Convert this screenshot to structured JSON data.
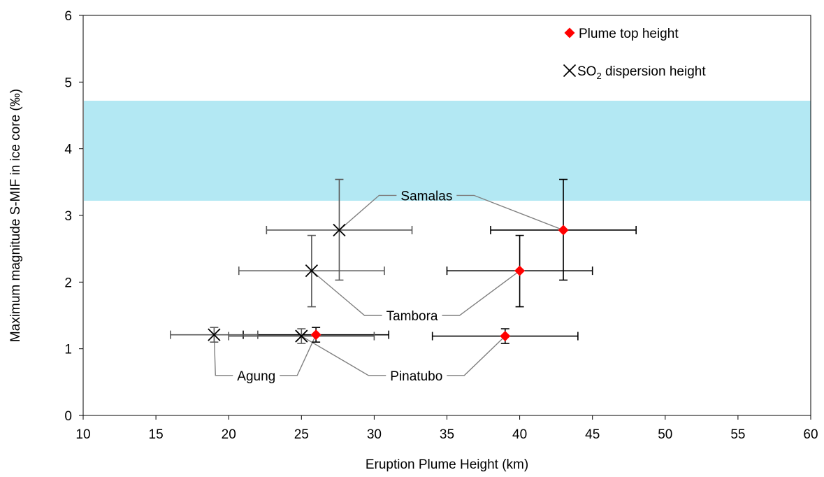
{
  "chart_data": {
    "type": "scatter",
    "xlabel": "Eruption Plume Height (km)",
    "ylabel": "Maximum magnitude S-MIF in ice core (‰)",
    "xlim": [
      10,
      60
    ],
    "ylim": [
      0,
      6
    ],
    "x_ticks": [
      "10",
      "15",
      "20",
      "25",
      "30",
      "35",
      "40",
      "45",
      "50",
      "55",
      "60"
    ],
    "y_ticks": [
      "0",
      "1",
      "2",
      "3",
      "4",
      "5",
      "6"
    ],
    "grid": false,
    "legend_position": "top-right",
    "shaded_band": {
      "y_min": 3.22,
      "y_max": 4.72,
      "color": "#b3e8f3"
    },
    "series": [
      {
        "name": "Plume top height",
        "marker": "diamond",
        "color": "#ff0000",
        "error_color": "#000000",
        "points": [
          {
            "label": "Samalas",
            "x": 43,
            "y": 2.78,
            "xerr": 5,
            "yerr_low": 0.75,
            "yerr_high": 0.76
          },
          {
            "label": "Tambora",
            "x": 40,
            "y": 2.17,
            "xerr": 5,
            "yerr_low": 0.54,
            "yerr_high": 0.53
          },
          {
            "label": "Pinatubo",
            "x": 39,
            "y": 1.19,
            "xerr": 5,
            "yerr_low": 0.11,
            "yerr_high": 0.11
          },
          {
            "label": "Agung",
            "x": 26,
            "y": 1.21,
            "xerr": 5,
            "yerr_low": 0.11,
            "yerr_high": 0.11
          }
        ]
      },
      {
        "name": "SO2 dispersion height",
        "name_main": "SO",
        "name_sub": "2",
        "name_rest": " dispersion height",
        "marker": "x",
        "color": "#000000",
        "error_color": "#595959",
        "points": [
          {
            "label": "Samalas",
            "x": 27.6,
            "y": 2.78,
            "xerr": 5,
            "yerr_low": 0.75,
            "yerr_high": 0.76
          },
          {
            "label": "Tambora",
            "x": 25.7,
            "y": 2.17,
            "xerr": 5,
            "yerr_low": 0.54,
            "yerr_high": 0.53
          },
          {
            "label": "Pinatubo",
            "x": 25,
            "y": 1.19,
            "xerr": 5,
            "yerr_low": 0.11,
            "yerr_high": 0.11
          },
          {
            "label": "Agung",
            "x": 19,
            "y": 1.21,
            "xerr": 3,
            "yerr_low": 0.11,
            "yerr_high": 0.11
          }
        ]
      }
    ],
    "annotations": [
      {
        "text": "Samalas",
        "x": 33.6,
        "y": 3.3
      },
      {
        "text": "Tambora",
        "x": 32.6,
        "y": 1.5
      },
      {
        "text": "Pinatubo",
        "x": 32.9,
        "y": 0.6
      },
      {
        "text": "Agung",
        "x": 21.9,
        "y": 0.6
      }
    ]
  }
}
